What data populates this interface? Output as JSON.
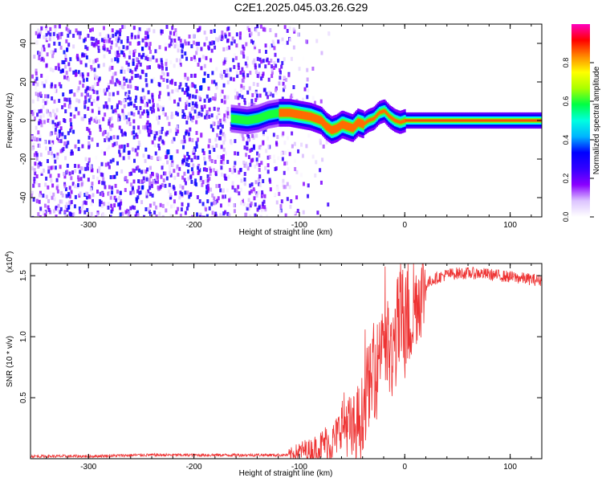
{
  "title": "C2E1.2025.045.03.26.G29",
  "chart_data": [
    {
      "type": "heatmap",
      "xlabel": "Height of straight line (km)",
      "ylabel": "Frequency (Hz)",
      "xlim": [
        -355,
        130
      ],
      "ylim": [
        -50,
        50
      ],
      "xticks": [
        -300,
        -200,
        -100,
        0,
        100
      ],
      "yticks": [
        -40,
        -20,
        0,
        20,
        40
      ],
      "colorbar": {
        "label": "Normalized spectral amplitude",
        "range": [
          0,
          1
        ],
        "ticks": [
          0.0,
          0.2,
          0.4,
          0.6,
          0.8
        ],
        "tick_labels": [
          "0.0",
          "0.2",
          "0.4",
          "0.6",
          "0.8"
        ],
        "colormap": [
          "#ffffff",
          "#dcc4ff",
          "#8a00ff",
          "#3300ff",
          "#0000ff",
          "#00b4ff",
          "#00ffe0",
          "#00ff44",
          "#aaff00",
          "#ffff00",
          "#ff8800",
          "#ff0000",
          "#ff00c0"
        ]
      },
      "ridge": {
        "x": [
          -165,
          -150,
          -140,
          -130,
          -120,
          -110,
          -100,
          -90,
          -80,
          -75,
          -70,
          -65,
          -60,
          -55,
          -50,
          -45,
          -40,
          -35,
          -30,
          -25,
          -20,
          -15,
          -10,
          -5,
          0,
          20,
          60,
          100,
          130
        ],
        "y": [
          1,
          0,
          1,
          3,
          4,
          4,
          3,
          2,
          0,
          -3,
          -5,
          -4,
          -2,
          -3,
          -4,
          -1,
          -2,
          0,
          1,
          4,
          5,
          2,
          0,
          -1,
          0,
          0,
          0,
          0,
          0
        ]
      },
      "noise_region_x": [
        -355,
        -110
      ]
    },
    {
      "type": "line",
      "xlabel": "Height of straight line (km)",
      "ylabel": "SNR (10 * v/v)",
      "y_multiplier_label": "(x10",
      "y_multiplier_exp": "4",
      "y_multiplier_close": ")",
      "xlim": [
        -355,
        130
      ],
      "ylim": [
        0,
        1.6
      ],
      "xticks": [
        -300,
        -200,
        -100,
        0,
        100
      ],
      "yticks": [
        0.5,
        1.0,
        1.5
      ],
      "ytick_labels": [
        "0.5",
        "1.0",
        "1.5"
      ],
      "color": "#ee3333",
      "series": [
        {
          "x": [
            -355,
            -300,
            -250,
            -200,
            -160,
            -130,
            -110,
            -100,
            -95,
            -90,
            -85,
            -80,
            -75,
            -70,
            -65,
            -60,
            -55,
            -50,
            -45,
            -42,
            -40,
            -37,
            -35,
            -32,
            -30,
            -27,
            -25,
            -22,
            -20,
            -18,
            -15,
            -12,
            -10,
            -8,
            -5,
            -2,
            0,
            5,
            10,
            15,
            20,
            25,
            30,
            40,
            50,
            70,
            90,
            110,
            130
          ],
          "y": [
            0.02,
            0.02,
            0.03,
            0.03,
            0.03,
            0.03,
            0.03,
            0.06,
            0.07,
            0.06,
            0.08,
            0.1,
            0.14,
            0.12,
            0.18,
            0.28,
            0.3,
            0.2,
            0.3,
            0.3,
            0.38,
            0.5,
            0.62,
            0.58,
            0.76,
            0.66,
            0.86,
            1.02,
            1.12,
            0.84,
            0.92,
            0.7,
            0.98,
            1.02,
            1.1,
            1.14,
            1.16,
            1.2,
            1.28,
            1.36,
            1.42,
            1.46,
            1.48,
            1.51,
            1.52,
            1.52,
            1.5,
            1.48,
            1.46
          ]
        }
      ]
    }
  ]
}
